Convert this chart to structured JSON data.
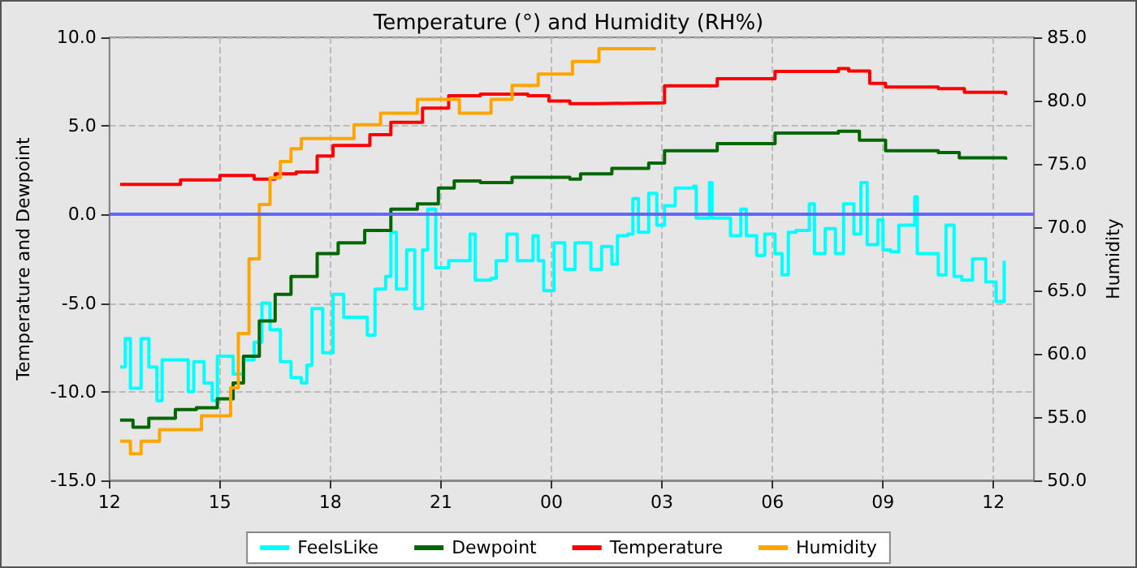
{
  "chart_data": {
    "type": "step",
    "title": "Temperature (°) and Humidity (RH%)",
    "ylabel": "Temperature and Dewpoint",
    "y2label": "Humidity",
    "xlim": [
      12,
      37.1
    ],
    "xticks": [
      {
        "value": 12,
        "label": "12"
      },
      {
        "value": 15,
        "label": "15"
      },
      {
        "value": 18,
        "label": "18"
      },
      {
        "value": 21,
        "label": "21"
      },
      {
        "value": 24,
        "label": "00"
      },
      {
        "value": 27,
        "label": "03"
      },
      {
        "value": 30,
        "label": "06"
      },
      {
        "value": 33,
        "label": "09"
      },
      {
        "value": 36,
        "label": "12"
      }
    ],
    "ylim": [
      -15,
      10
    ],
    "yticks": [
      {
        "value": -15,
        "label": "-15.0"
      },
      {
        "value": -10,
        "label": "-10.0"
      },
      {
        "value": -5,
        "label": "-5.0"
      },
      {
        "value": 0,
        "label": "0.0"
      },
      {
        "value": 5,
        "label": "5.0"
      },
      {
        "value": 10,
        "label": "10.0"
      }
    ],
    "y2lim": [
      50,
      85
    ],
    "y2ticks": [
      {
        "value": 50,
        "label": "50.0"
      },
      {
        "value": 55,
        "label": "55.0"
      },
      {
        "value": 60,
        "label": "60.0"
      },
      {
        "value": 65,
        "label": "65.0"
      },
      {
        "value": 70,
        "label": "70.0"
      },
      {
        "value": 75,
        "label": "75.0"
      },
      {
        "value": 80,
        "label": "80.0"
      },
      {
        "value": 85,
        "label": "85.0"
      }
    ],
    "grid": true,
    "legend": "bottom",
    "marker": "none",
    "line_style": "solid",
    "ref_lines": [
      {
        "axis": "y",
        "value": 0,
        "color": "#6464ff"
      }
    ],
    "series": [
      {
        "name": "FeelsLike",
        "color": "#00ffff",
        "x": [
          12.29,
          12.43,
          12.57,
          12.86,
          13.07,
          13.29,
          13.43,
          13.93,
          14.14,
          14.29,
          14.57,
          14.79,
          14.93,
          15.21,
          15.36,
          15.64,
          15.93,
          16.14,
          16.36,
          16.64,
          16.93,
          17.21,
          17.36,
          17.5,
          17.79,
          18.07,
          18.36,
          18.79,
          19.0,
          19.21,
          19.5,
          19.64,
          19.79,
          20.07,
          20.29,
          20.5,
          20.64,
          20.86,
          21.21,
          21.64,
          21.79,
          21.93,
          22.36,
          22.5,
          22.79,
          23.07,
          23.5,
          23.64,
          23.79,
          23.93,
          24.07,
          24.36,
          24.64,
          25.07,
          25.36,
          25.64,
          25.79,
          26.07,
          26.21,
          26.36,
          26.64,
          26.86,
          27.07,
          27.36,
          27.86,
          27.93,
          28.29,
          28.36,
          28.79,
          28.86,
          29.14,
          29.29,
          29.57,
          29.79,
          30.07,
          30.26,
          30.43,
          30.64,
          31.0,
          31.14,
          31.43,
          31.71,
          31.93,
          32.21,
          32.4,
          32.57,
          32.86,
          33.0,
          33.21,
          33.43,
          33.86,
          33.93,
          34.5,
          34.71,
          34.93,
          35.14,
          35.43,
          35.79,
          36.07,
          36.29
        ],
        "values": [
          -8.6,
          -7.0,
          -9.8,
          -7.0,
          -8.6,
          -10.5,
          -8.2,
          -8.2,
          -10.0,
          -8.3,
          -9.5,
          -10.5,
          -8.0,
          -8.0,
          -9.0,
          -8.2,
          -7.2,
          -5.0,
          -6.5,
          -8.3,
          -9.2,
          -9.5,
          -8.5,
          -5.3,
          -7.8,
          -4.5,
          -5.8,
          -5.8,
          -6.8,
          -4.2,
          -3.5,
          -1.0,
          -4.2,
          -2.0,
          -5.3,
          -2.0,
          0.3,
          -3.0,
          -2.6,
          -2.6,
          -1.1,
          -3.7,
          -3.6,
          -2.6,
          -1.1,
          -2.6,
          -1.2,
          -2.6,
          -4.3,
          -4.3,
          -1.6,
          -3.1,
          -1.6,
          -3.1,
          -1.8,
          -2.8,
          -1.2,
          -1.1,
          0.9,
          -1.0,
          1.2,
          -0.6,
          0.5,
          1.5,
          1.6,
          -0.2,
          1.8,
          -0.2,
          -0.2,
          -1.2,
          0.3,
          -1.2,
          -2.3,
          -1.1,
          -2.2,
          -3.4,
          -1.0,
          -0.9,
          0.6,
          -2.2,
          -0.8,
          -2.2,
          0.6,
          -1.1,
          1.8,
          -1.7,
          -0.3,
          -2.0,
          -2.1,
          -0.6,
          1.0,
          -2.2,
          -3.4,
          -0.6,
          -3.5,
          -3.7,
          -2.5,
          -3.8,
          -4.9,
          -2.6
        ]
      },
      {
        "name": "Dewpoint",
        "color": "#006600",
        "x": [
          12.29,
          12.64,
          13.07,
          13.79,
          14.36,
          14.93,
          15.36,
          15.64,
          16.07,
          16.5,
          16.93,
          17.64,
          18.21,
          18.93,
          19.64,
          20.36,
          20.93,
          21.36,
          22.07,
          22.93,
          23.93,
          24.5,
          24.79,
          25.21,
          25.64,
          26.64,
          27.07,
          28.5,
          30.07,
          31.79,
          32.36,
          33.07,
          34.5,
          35.07,
          36.33
        ],
        "values": [
          -11.6,
          -12.0,
          -11.5,
          -11.0,
          -10.9,
          -10.4,
          -9.5,
          -8.0,
          -6.0,
          -4.5,
          -3.5,
          -2.2,
          -1.6,
          -0.9,
          0.3,
          0.6,
          1.5,
          1.9,
          1.8,
          2.1,
          2.1,
          2.0,
          2.3,
          2.3,
          2.6,
          2.9,
          3.6,
          4.0,
          4.6,
          4.7,
          4.2,
          3.6,
          3.5,
          3.2,
          3.1
        ]
      },
      {
        "name": "Temperature",
        "color": "#ff0000",
        "x": [
          12.29,
          13.93,
          15.0,
          15.93,
          16.5,
          17.07,
          17.64,
          18.07,
          18.5,
          19.07,
          19.64,
          20.5,
          21.21,
          22.07,
          23.36,
          23.93,
          24.5,
          25.21,
          27.07,
          28.5,
          30.07,
          31.79,
          32.07,
          32.64,
          33.07,
          34.5,
          35.21,
          36.33
        ],
        "values": [
          1.7,
          1.95,
          2.2,
          2.0,
          2.3,
          2.4,
          3.3,
          3.9,
          3.9,
          4.5,
          5.2,
          6.0,
          6.7,
          6.8,
          6.7,
          6.4,
          6.26,
          6.3,
          7.26,
          7.66,
          8.08,
          8.24,
          8.1,
          7.4,
          7.2,
          7.1,
          6.9,
          6.75
        ]
      },
      {
        "name": "Humidity",
        "color": "#ffa500",
        "axis": "y2",
        "x": [
          12.29,
          12.57,
          12.86,
          13.36,
          14.5,
          15.29,
          15.5,
          15.79,
          16.07,
          16.36,
          16.64,
          16.93,
          17.21,
          18.64,
          19.36,
          20.36,
          21.5,
          22.36,
          22.93,
          23.64,
          24.57,
          25.29,
          26.83
        ],
        "values": [
          53.1,
          52.1,
          53.1,
          54.0,
          55.1,
          57.3,
          61.6,
          67.5,
          71.8,
          73.9,
          75.2,
          76.2,
          77.0,
          78.1,
          79.0,
          80.1,
          79.0,
          80.1,
          81.2,
          82.1,
          83.1,
          84.1,
          84.1
        ]
      }
    ]
  }
}
